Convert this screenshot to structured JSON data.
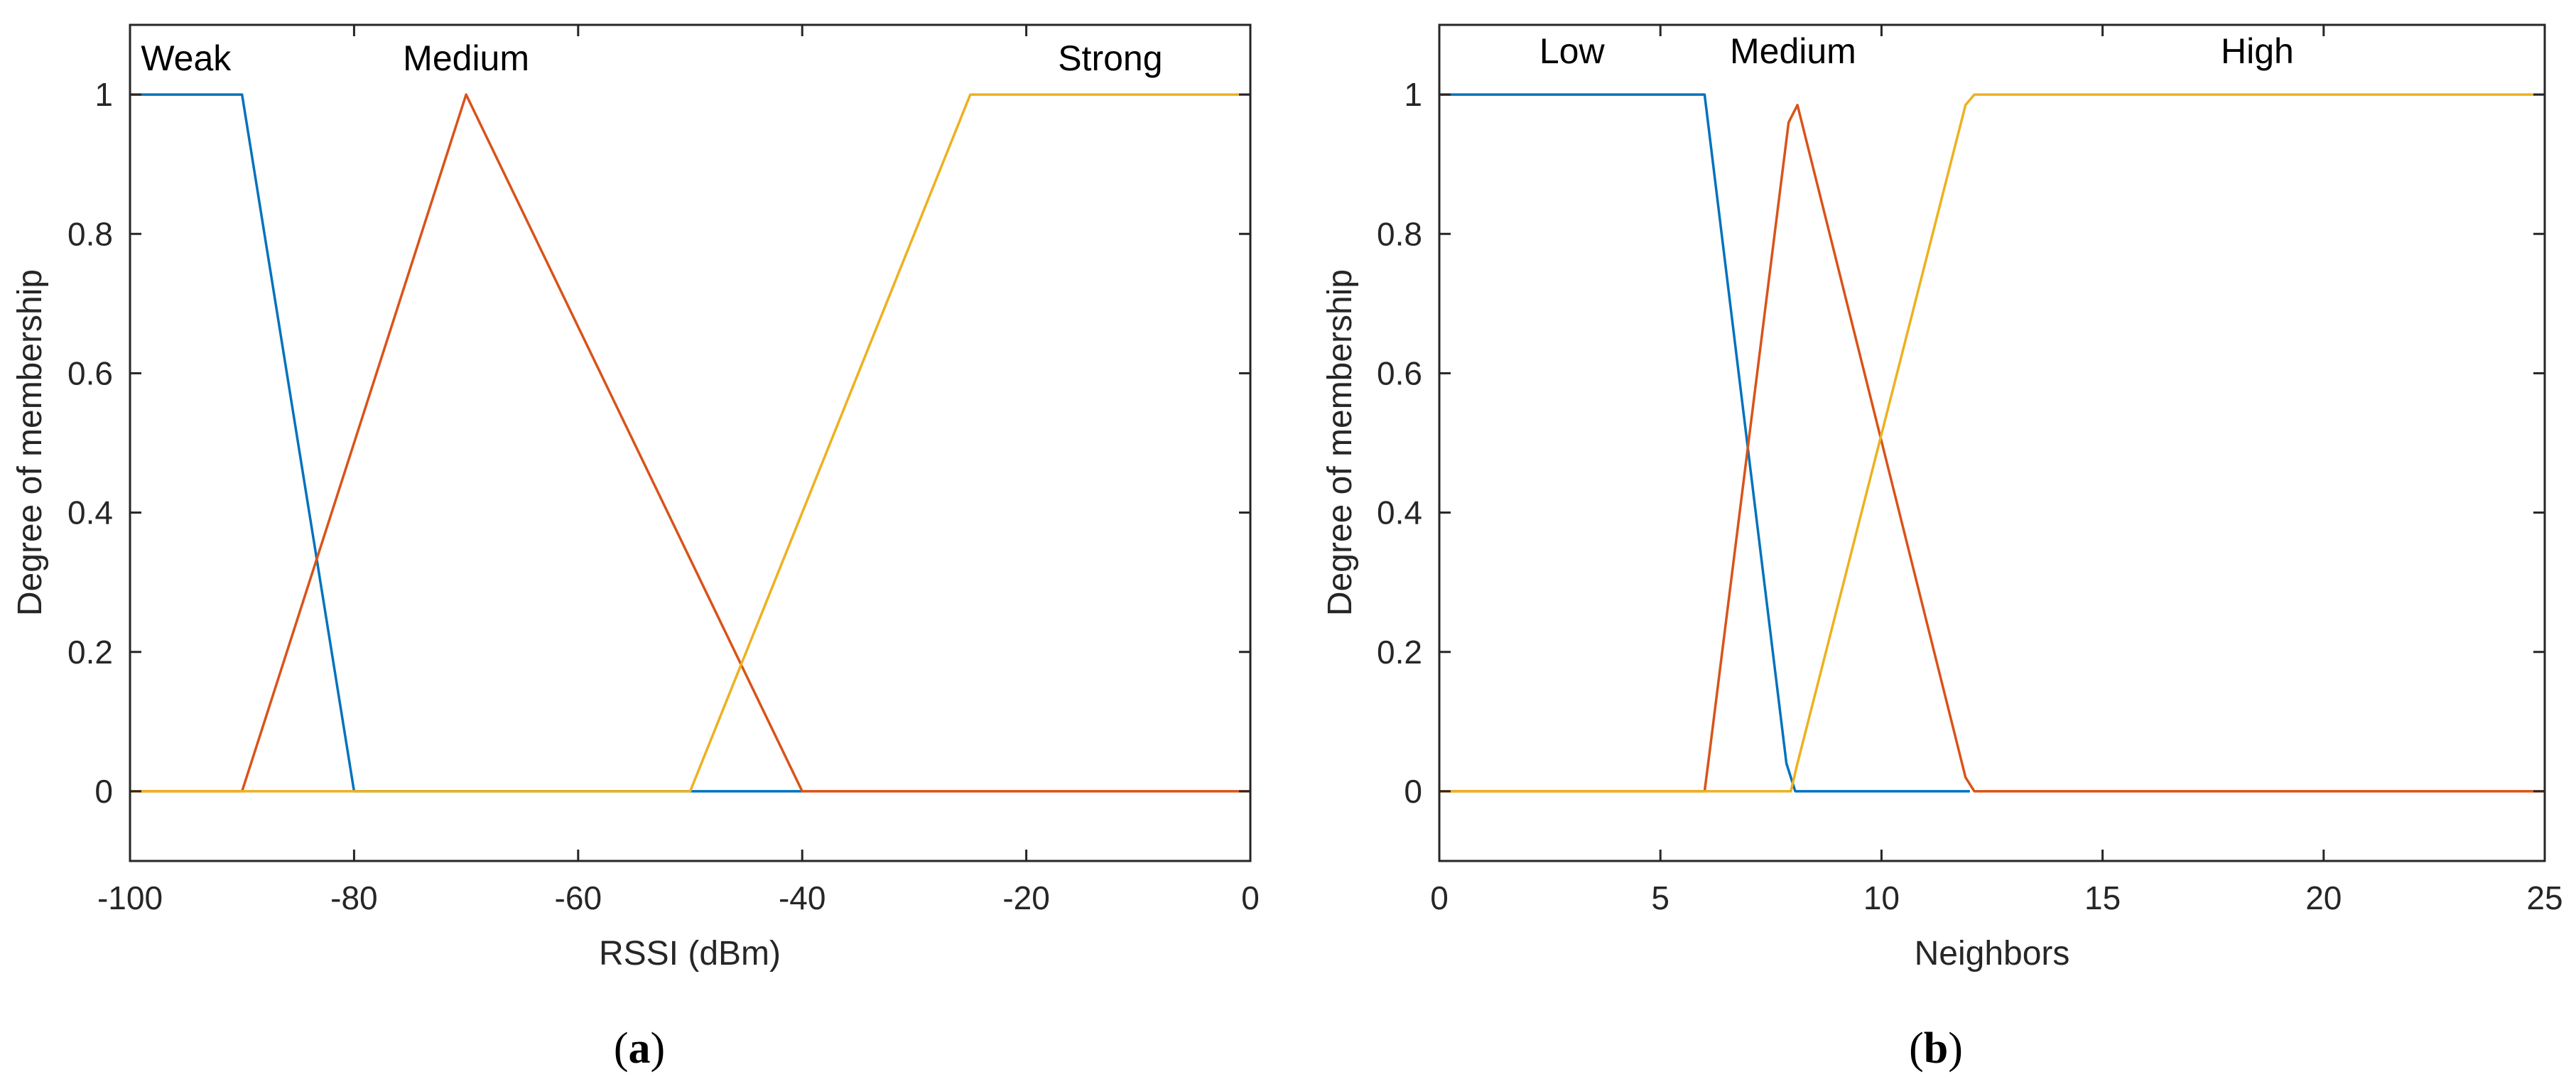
{
  "colors": {
    "blue": "#0072BD",
    "red": "#D95319",
    "yellow": "#EDB120",
    "axis": "#262626"
  },
  "chart_data": [
    {
      "type": "line",
      "caption_open": "(",
      "caption": "a",
      "caption_close": ")",
      "xlabel": "RSSI (dBm)",
      "ylabel": "Degree of membership",
      "xlim": [
        -100,
        0
      ],
      "ylim": [
        -0.1,
        1.1
      ],
      "xticks": [
        -100,
        -80,
        -60,
        -40,
        -20,
        0
      ],
      "xtick_labels": [
        "-100",
        "-80",
        "-60",
        "-40",
        "-20",
        "0"
      ],
      "yticks": [
        0,
        0.2,
        0.4,
        0.6,
        0.8,
        1
      ],
      "ytick_labels": [
        "0",
        "0.2",
        "0.4",
        "0.6",
        "0.8",
        "1"
      ],
      "series": [
        {
          "name": "Weak",
          "color": "blue",
          "x": [
            -100,
            -90,
            -80,
            -50,
            -40
          ],
          "y": [
            1,
            1,
            0,
            0,
            0
          ],
          "label_x": -95,
          "label_y": 1.035
        },
        {
          "name": "Medium",
          "color": "red",
          "x": [
            -100,
            -90,
            -70,
            -40,
            0
          ],
          "y": [
            0,
            0,
            1,
            0,
            0
          ],
          "label_x": -70,
          "label_y": 1.035
        },
        {
          "name": "Strong",
          "color": "yellow",
          "x": [
            -100,
            -50,
            -25,
            0
          ],
          "y": [
            0,
            0,
            1,
            1
          ],
          "label_x": -12.5,
          "label_y": 1.035
        }
      ]
    },
    {
      "type": "line",
      "caption_open": "(",
      "caption": "b",
      "caption_close": ")",
      "xlabel": "Neighbors",
      "ylabel": "Degree of membership",
      "xlim": [
        0,
        25
      ],
      "ylim": [
        -0.1,
        1.1
      ],
      "xticks": [
        0,
        5,
        10,
        15,
        20,
        25
      ],
      "xtick_labels": [
        "0",
        "5",
        "10",
        "15",
        "20",
        "25"
      ],
      "yticks": [
        0,
        0.2,
        0.4,
        0.6,
        0.8,
        1
      ],
      "ytick_labels": [
        "0",
        "0.2",
        "0.4",
        "0.6",
        "0.8",
        "1"
      ],
      "series": [
        {
          "name": "Low",
          "color": "blue",
          "x": [
            0,
            6,
            7.85,
            8.05,
            12
          ],
          "y": [
            1,
            1,
            0.04,
            0,
            0
          ],
          "label_x": 3,
          "label_y": 1.045
        },
        {
          "name": "Medium",
          "color": "red",
          "x": [
            0,
            6,
            6.1,
            7.9,
            8.1,
            11.9,
            12.1,
            25
          ],
          "y": [
            0,
            0,
            0.05,
            0.96,
            0.985,
            0.02,
            0,
            0
          ],
          "label_x": 8,
          "label_y": 1.045
        },
        {
          "name": "High",
          "color": "yellow",
          "x": [
            0,
            7.95,
            8.1,
            11.9,
            12.1,
            25
          ],
          "y": [
            0,
            0,
            0.04,
            0.985,
            1,
            1
          ],
          "label_x": 18.5,
          "label_y": 1.045
        }
      ]
    }
  ]
}
